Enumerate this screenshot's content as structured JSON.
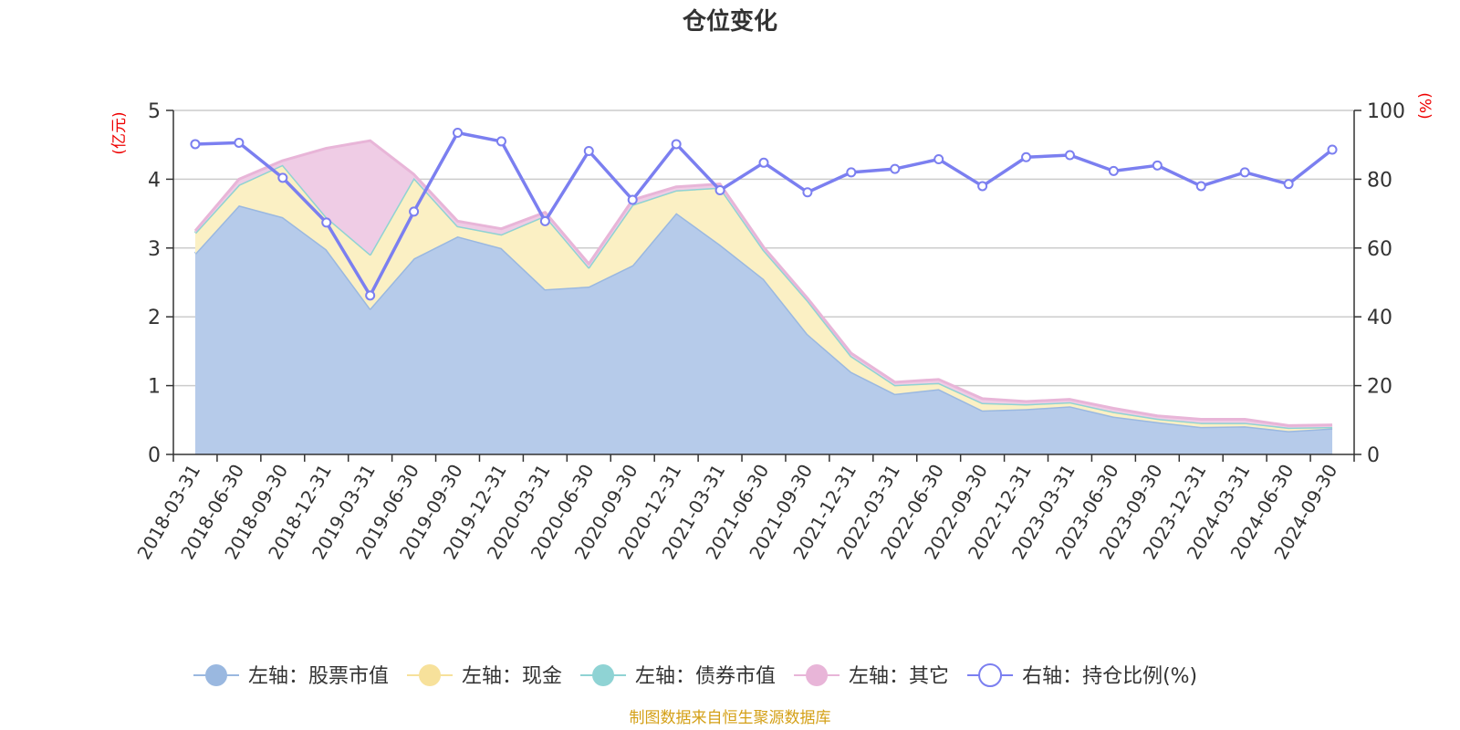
{
  "chart_data": {
    "type": "area",
    "title": "仓位变化",
    "y_left_unit": "(亿元)",
    "y_right_unit": "(%)",
    "y_left_ticks": [
      "0",
      "1",
      "2",
      "3",
      "4",
      "5"
    ],
    "y_right_ticks": [
      "0",
      "20",
      "40",
      "60",
      "80",
      "100"
    ],
    "ylim_left": [
      0,
      5
    ],
    "ylim_right": [
      0,
      100
    ],
    "grid": true,
    "legend_position": "bottom",
    "categories": [
      "2018-03-31",
      "2018-06-30",
      "2018-09-30",
      "2018-12-31",
      "2019-03-31",
      "2019-06-30",
      "2019-09-30",
      "2019-12-31",
      "2020-03-31",
      "2020-06-30",
      "2020-09-30",
      "2020-12-31",
      "2021-03-31",
      "2021-06-30",
      "2021-09-30",
      "2021-12-31",
      "2022-03-31",
      "2022-06-30",
      "2022-09-30",
      "2022-12-31",
      "2023-03-31",
      "2023-06-30",
      "2023-09-30",
      "2023-12-31",
      "2024-03-31",
      "2024-06-30",
      "2024-09-30"
    ],
    "series": [
      {
        "name": "左轴：股票市值",
        "axis": "left",
        "kind": "stack",
        "color": "#9ab8e0",
        "fill": "#b6cbea",
        "values": [
          2.92,
          3.62,
          3.45,
          2.98,
          2.12,
          2.85,
          3.17,
          3.0,
          2.4,
          2.44,
          2.75,
          3.51,
          3.05,
          2.55,
          1.75,
          1.2,
          0.88,
          0.95,
          0.64,
          0.66,
          0.7,
          0.55,
          0.47,
          0.4,
          0.41,
          0.34,
          0.38
        ]
      },
      {
        "name": "左轴：现金",
        "axis": "left",
        "kind": "stack",
        "color": "#f7e19b",
        "fill": "#fbf0c4",
        "values": [
          0.3,
          0.3,
          0.76,
          0.47,
          0.79,
          1.17,
          0.15,
          0.2,
          1.07,
          0.28,
          0.88,
          0.33,
          0.83,
          0.42,
          0.49,
          0.23,
          0.13,
          0.09,
          0.11,
          0.07,
          0.06,
          0.07,
          0.05,
          0.06,
          0.05,
          0.05,
          0.02
        ]
      },
      {
        "name": "左轴：债券市值",
        "axis": "left",
        "kind": "stack",
        "color": "#8fd3d4",
        "fill": "#a9dedf",
        "values": [
          0,
          0,
          0,
          0,
          0,
          0,
          0,
          0,
          0,
          0,
          0,
          0,
          0,
          0,
          0,
          0,
          0,
          0,
          0,
          0,
          0,
          0,
          0,
          0,
          0,
          0,
          0
        ]
      },
      {
        "name": "左轴：其它",
        "axis": "left",
        "kind": "stack",
        "color": "#e8b5d8",
        "fill": "#efcce5",
        "values": [
          0.03,
          0.08,
          0.06,
          1.0,
          1.65,
          0.05,
          0.07,
          0.08,
          0.05,
          0.05,
          0.07,
          0.05,
          0.05,
          0.04,
          0.03,
          0.04,
          0.04,
          0.05,
          0.06,
          0.04,
          0.04,
          0.05,
          0.04,
          0.05,
          0.05,
          0.03,
          0.03
        ]
      },
      {
        "name": "右轴：持仓比例(%)",
        "axis": "right",
        "kind": "line",
        "color": "#7b7ff0",
        "values": [
          90.2,
          90.6,
          80.4,
          67.4,
          46.2,
          70.6,
          93.5,
          91.0,
          67.8,
          88.2,
          74.0,
          90.2,
          76.8,
          84.8,
          76.2,
          82.0,
          83.0,
          85.8,
          78.0,
          86.4,
          87.0,
          82.4,
          84.0,
          78.0,
          82.0,
          78.6,
          88.6
        ]
      }
    ]
  },
  "source_note": "制图数据来自恒生聚源数据库"
}
